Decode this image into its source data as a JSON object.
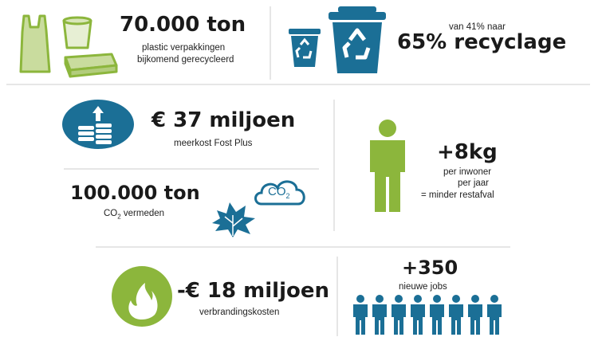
{
  "colors": {
    "green": "#8cb63c",
    "blue": "#1b6f96",
    "divider": "#e6e6e6"
  },
  "plastic": {
    "value": "70.000 ton",
    "line1": "plastic verpakkingen",
    "line2": "bijkomend gerecycleerd"
  },
  "recycle": {
    "pre": "van 41% naar",
    "value": "65% recyclage"
  },
  "cost": {
    "value": "€ 37 miljoen",
    "caption": "meerkost Fost Plus"
  },
  "co2": {
    "value": "100.000 ton",
    "caption_prefix": "CO",
    "caption_sub": "2",
    "caption_suffix": " vermeden",
    "cloud_text": "CO",
    "cloud_sub": "2"
  },
  "waste": {
    "value": "+8kg",
    "line1": "per inwoner",
    "line2": "per jaar",
    "line3": "= minder restafval"
  },
  "burn": {
    "value": "-€ 18 miljoen",
    "caption": "verbrandingskosten"
  },
  "jobs": {
    "value": "+350",
    "caption": "nieuwe jobs",
    "people_count": 8
  },
  "icons": [
    "plastic-packaging-icon",
    "recycle-bin-small-icon",
    "recycle-bin-large-icon",
    "coins-up-icon",
    "co2-cloud-icon",
    "leaf-icon",
    "person-icon",
    "flame-icon",
    "people-row-icon"
  ]
}
